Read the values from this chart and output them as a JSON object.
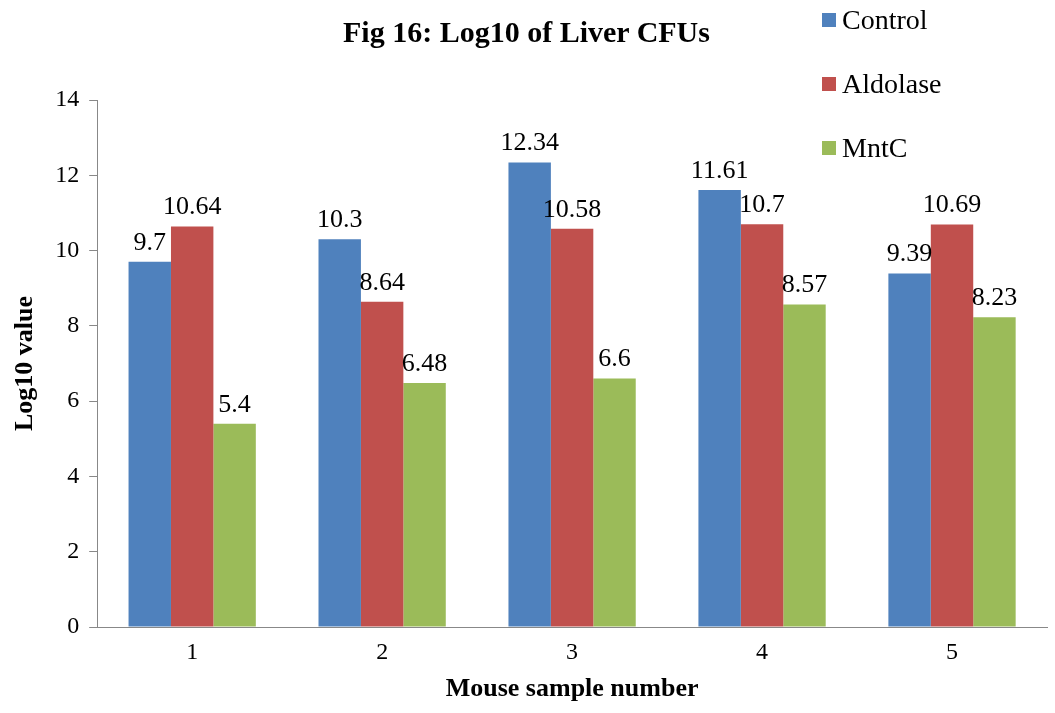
{
  "chart_data": {
    "type": "bar",
    "title": "Fig 16: Log10 of Liver CFUs",
    "xlabel": "Mouse sample number",
    "ylabel": "Log10 value",
    "categories": [
      "1",
      "2",
      "3",
      "4",
      "5"
    ],
    "series": [
      {
        "name": "Control",
        "color": "#4f81bd",
        "values": [
          9.7,
          10.3,
          12.34,
          11.61,
          9.39
        ]
      },
      {
        "name": "Aldolase",
        "color": "#c0504d",
        "values": [
          10.64,
          8.64,
          10.58,
          10.7,
          10.69
        ]
      },
      {
        "name": "MntC",
        "color": "#9bbb59",
        "values": [
          5.4,
          6.48,
          6.6,
          8.57,
          8.23
        ]
      }
    ],
    "ylim": [
      0,
      14
    ],
    "yticks": [
      0,
      2,
      4,
      6,
      8,
      10,
      12,
      14
    ],
    "grid": false,
    "legend": "top right",
    "data_labels": true
  }
}
